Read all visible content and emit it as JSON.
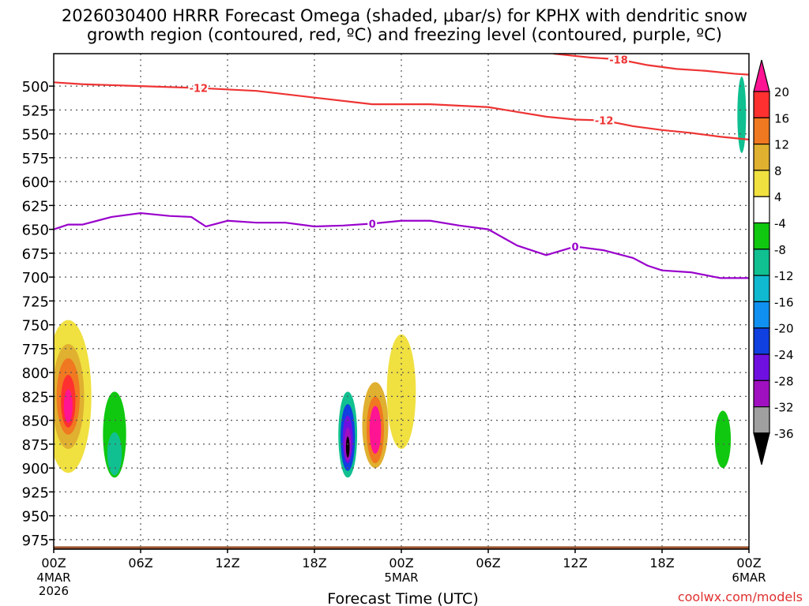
{
  "title": {
    "line1": "2026030400 HRRR Forecast Omega (shaded, μbar/s) for KPHX with dendritic snow",
    "line2": "growth region (contoured, red, ºC) and freezing level (contoured, purple, ºC)"
  },
  "watermark": "coolwx.com/models",
  "chart_data": {
    "type": "time-height cross-section",
    "xlabel": "Forecast Time (UTC)",
    "ylabel": "Pressure (hPa)",
    "xlim": [
      0,
      48
    ],
    "ylim": [
      985,
      466
    ],
    "x_ticks": [
      {
        "h": 0,
        "label": "00Z",
        "sub1": "4MAR",
        "sub2": "2026"
      },
      {
        "h": 6,
        "label": "06Z"
      },
      {
        "h": 12,
        "label": "12Z"
      },
      {
        "h": 18,
        "label": "18Z"
      },
      {
        "h": 24,
        "label": "00Z",
        "sub1": "5MAR"
      },
      {
        "h": 30,
        "label": "06Z"
      },
      {
        "h": 36,
        "label": "12Z"
      },
      {
        "h": 42,
        "label": "18Z"
      },
      {
        "h": 48,
        "label": "00Z",
        "sub1": "6MAR"
      }
    ],
    "y_ticks": [
      500,
      525,
      550,
      575,
      600,
      625,
      650,
      675,
      700,
      725,
      750,
      775,
      800,
      825,
      850,
      875,
      900,
      925,
      950,
      975
    ],
    "colorbar": {
      "labels": [
        "20",
        "16",
        "12",
        "8",
        "4",
        "-4",
        "-8",
        "-12",
        "-16",
        "-20",
        "-24",
        "-28",
        "-32",
        "-36"
      ],
      "colors": [
        "#ff1493",
        "#ff3030",
        "#f07820",
        "#e0b030",
        "#f0e040",
        "#ffffff",
        "#10c810",
        "#10c090",
        "#10b8d0",
        "#1090f0",
        "#1040e0",
        "#7010e0",
        "#a010c0",
        "#a0a0a0"
      ]
    },
    "shaded_omega": [
      {
        "h": 1.0,
        "p": 825,
        "dh": 3.2,
        "dp": 160,
        "level": 4
      },
      {
        "h": 1.0,
        "p": 825,
        "dh": 2.2,
        "dp": 110,
        "level": 8
      },
      {
        "h": 1.0,
        "p": 825,
        "dh": 1.6,
        "dp": 80,
        "level": 12
      },
      {
        "h": 1.0,
        "p": 830,
        "dh": 1.0,
        "dp": 55,
        "level": 16
      },
      {
        "h": 1.0,
        "p": 835,
        "dh": 0.6,
        "dp": 35,
        "level": 20
      },
      {
        "h": 4.2,
        "p": 865,
        "dh": 1.6,
        "dp": 90,
        "level": -8
      },
      {
        "h": 4.2,
        "p": 885,
        "dh": 1.0,
        "dp": 45,
        "level": -12
      },
      {
        "h": 24.0,
        "p": 820,
        "dh": 2.0,
        "dp": 120,
        "level": 4
      },
      {
        "h": 22.2,
        "p": 855,
        "dh": 1.8,
        "dp": 90,
        "level": 8
      },
      {
        "h": 22.2,
        "p": 860,
        "dh": 1.2,
        "dp": 70,
        "level": 12
      },
      {
        "h": 22.2,
        "p": 860,
        "dh": 0.8,
        "dp": 50,
        "level": 20
      },
      {
        "h": 20.3,
        "p": 865,
        "dh": 1.5,
        "dp": 100,
        "level": -4
      },
      {
        "h": 20.3,
        "p": 865,
        "dh": 1.3,
        "dp": 90,
        "level": -12
      },
      {
        "h": 20.3,
        "p": 868,
        "dh": 1.0,
        "dp": 70,
        "level": -24
      },
      {
        "h": 20.3,
        "p": 870,
        "dh": 0.7,
        "dp": 50,
        "level": -28
      },
      {
        "h": 20.3,
        "p": 875,
        "dh": 0.45,
        "dp": 35,
        "level": -32
      },
      {
        "h": 20.3,
        "p": 878,
        "dh": 0.25,
        "dp": 22,
        "level": -36
      },
      {
        "h": 46.2,
        "p": 870,
        "dh": 1.1,
        "dp": 60,
        "level": -8
      },
      {
        "h": 47.5,
        "p": 530,
        "dh": 0.6,
        "dp": 80,
        "level": -12
      }
    ],
    "freezing_level_0C": {
      "color": "#9900cc",
      "label": "0",
      "x": [
        0,
        1,
        2,
        4,
        6,
        8,
        9.5,
        10.5,
        12,
        14,
        16,
        18,
        20,
        22,
        24,
        26,
        28,
        30,
        32,
        34,
        36,
        38,
        40,
        41,
        42,
        44,
        46,
        48
      ],
      "y": [
        650,
        645,
        645,
        637,
        633,
        636,
        637,
        647,
        641,
        643,
        643,
        647,
        646,
        644,
        641,
        641,
        646,
        650,
        667,
        677,
        668,
        672,
        680,
        688,
        693,
        695,
        701,
        701
      ]
    },
    "dgz_minus12C": {
      "color": "#ee3333",
      "label": "-12",
      "x": [
        0,
        2,
        6,
        10,
        14,
        18,
        22,
        26,
        30,
        34,
        36,
        38,
        40,
        42,
        44,
        46,
        48
      ],
      "y": [
        496,
        498,
        500,
        502,
        505,
        512,
        519,
        519,
        522,
        532,
        535,
        536,
        542,
        546,
        549,
        553,
        556
      ]
    },
    "dgz_minus18C": {
      "color": "#ee3333",
      "label": "-18",
      "x": [
        34.5,
        37,
        39,
        41,
        43,
        45,
        47,
        48
      ],
      "y": [
        466,
        470,
        472,
        478,
        482,
        484,
        487,
        488
      ]
    },
    "ground": {
      "color": "#9a5530",
      "top_hpa": 982
    }
  }
}
